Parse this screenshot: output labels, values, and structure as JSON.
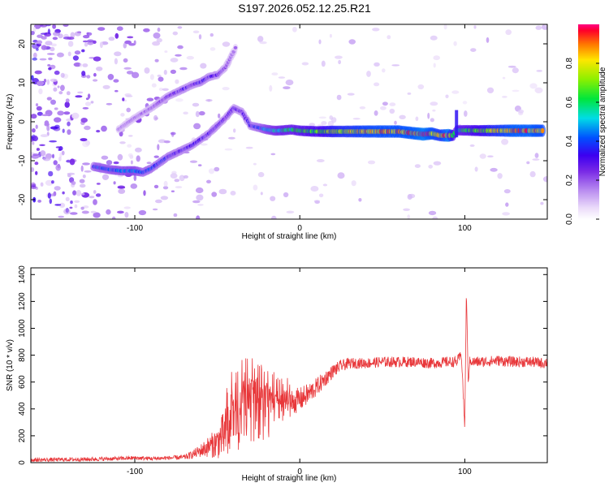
{
  "title": "S197.2026.052.12.25.R21",
  "colors": {
    "signal": "#e8373a",
    "axis": "#000000",
    "background": "#ffffff"
  },
  "chart_data": [
    {
      "id": "spectrogram",
      "type": "heatmap",
      "xlabel": "Height of straight line (km)",
      "ylabel": "Frequency (Hz)",
      "xlim": [
        -163,
        150
      ],
      "ylim": [
        -25,
        25
      ],
      "xticks": [
        -100,
        0,
        100
      ],
      "xtick_labels": [
        "-100",
        "0",
        "100"
      ],
      "yticks": [
        20,
        10,
        0,
        -10,
        -20
      ],
      "ytick_labels": [
        "20",
        "10",
        "0",
        "-10",
        "-20"
      ],
      "colorbar": {
        "label": "Normalized spectral amplitude",
        "range": [
          0.0,
          1.0
        ],
        "ticks": [
          0.0,
          0.2,
          0.4,
          0.6,
          0.8
        ],
        "tick_labels": [
          "0.0",
          "0.2",
          "0.4",
          "0.6",
          "0.8"
        ]
      },
      "ridge_lower": {
        "name": "main frequency track",
        "x": [
          -125,
          -115,
          -108,
          -100,
          -95,
          -90,
          -85,
          -80,
          -75,
          -70,
          -65,
          -60,
          -55,
          -50,
          -45,
          -40,
          -35,
          -30,
          -25,
          -20,
          -15,
          -10,
          -5,
          0,
          10,
          20,
          30,
          40,
          50,
          60,
          70,
          75,
          80,
          85,
          90,
          93,
          95,
          100,
          110,
          120,
          130,
          140,
          148
        ],
        "y": [
          -11.5,
          -12.3,
          -12.6,
          -12.6,
          -13.0,
          -12.0,
          -10.5,
          -9.0,
          -8.0,
          -7.0,
          -6.0,
          -4.5,
          -3.0,
          -1.0,
          1.0,
          3.5,
          2.5,
          -1.0,
          -1.5,
          -2.0,
          -2.3,
          -2.2,
          -2.0,
          -2.3,
          -2.5,
          -2.5,
          -2.5,
          -2.5,
          -2.5,
          -2.5,
          -3.0,
          -3.2,
          -3.0,
          -3.5,
          -3.5,
          -3.5,
          -2.2,
          -2.2,
          -2.3,
          -2.3,
          -2.3,
          -2.3,
          -2.3
        ],
        "amplitude": [
          0.42,
          0.45,
          0.48,
          0.5,
          0.42,
          0.4,
          0.38,
          0.36,
          0.35,
          0.34,
          0.33,
          0.33,
          0.32,
          0.32,
          0.3,
          0.32,
          0.3,
          0.35,
          0.4,
          0.5,
          0.55,
          0.6,
          0.6,
          0.65,
          0.7,
          0.8,
          0.85,
          0.9,
          0.92,
          0.92,
          0.95,
          1.0,
          0.92,
          0.85,
          1.0,
          0.7,
          0.6,
          0.65,
          0.75,
          0.85,
          0.95,
          0.95,
          0.9
        ]
      },
      "ridge_upper": {
        "name": "secondary branch",
        "x": [
          -110,
          -100,
          -90,
          -80,
          -70,
          -65,
          -60,
          -55,
          -50,
          -45,
          -40,
          -38
        ],
        "y": [
          -2.0,
          1.0,
          3.5,
          6.5,
          8.5,
          9.5,
          10.2,
          11.5,
          12.0,
          14.0,
          18.0,
          20.0
        ],
        "amplitude": [
          0.18,
          0.2,
          0.22,
          0.28,
          0.32,
          0.3,
          0.35,
          0.32,
          0.3,
          0.25,
          0.2,
          0.18
        ]
      },
      "spike": {
        "x": 95,
        "y_range": [
          -4,
          3
        ]
      }
    },
    {
      "id": "snr",
      "type": "line",
      "xlabel": "Height of straight line (km)",
      "ylabel": "SNR (10 * v/v)",
      "xlim": [
        -163,
        150
      ],
      "ylim": [
        0,
        1450
      ],
      "xticks": [
        -100,
        0,
        100
      ],
      "xtick_labels": [
        "-100",
        "0",
        "100"
      ],
      "yticks": [
        0,
        200,
        400,
        600,
        800,
        1000,
        1200,
        1400
      ],
      "ytick_labels": [
        "0",
        "200",
        "400",
        "600",
        "800",
        "1000",
        "1200",
        "1400"
      ],
      "series": [
        {
          "name": "SNR",
          "x": [
            -163,
            -150,
            -130,
            -110,
            -100,
            -90,
            -80,
            -70,
            -65,
            -60,
            -55,
            -50,
            -45,
            -40,
            -35,
            -30,
            -25,
            -20,
            -15,
            -10,
            -5,
            0,
            5,
            10,
            15,
            20,
            25,
            30,
            40,
            50,
            60,
            70,
            80,
            90,
            95,
            98,
            100,
            101,
            102,
            103,
            104,
            105,
            110,
            120,
            130,
            140,
            148,
            150
          ],
          "y": [
            20,
            22,
            25,
            30,
            35,
            30,
            35,
            40,
            60,
            90,
            120,
            150,
            220,
            280,
            350,
            380,
            400,
            370,
            400,
            420,
            450,
            470,
            510,
            560,
            620,
            680,
            720,
            740,
            740,
            750,
            750,
            750,
            740,
            750,
            750,
            800,
            250,
            1300,
            600,
            750,
            760,
            750,
            750,
            760,
            750,
            750,
            740,
            750
          ],
          "noise": [
            15,
            15,
            15,
            15,
            15,
            15,
            15,
            20,
            30,
            50,
            80,
            120,
            200,
            250,
            260,
            250,
            240,
            200,
            150,
            120,
            100,
            90,
            80,
            70,
            60,
            50,
            45,
            40,
            40,
            40,
            40,
            40,
            40,
            40,
            40,
            40,
            40,
            40,
            40,
            40,
            40,
            40,
            40,
            40,
            40,
            40,
            40,
            40
          ]
        }
      ]
    }
  ]
}
